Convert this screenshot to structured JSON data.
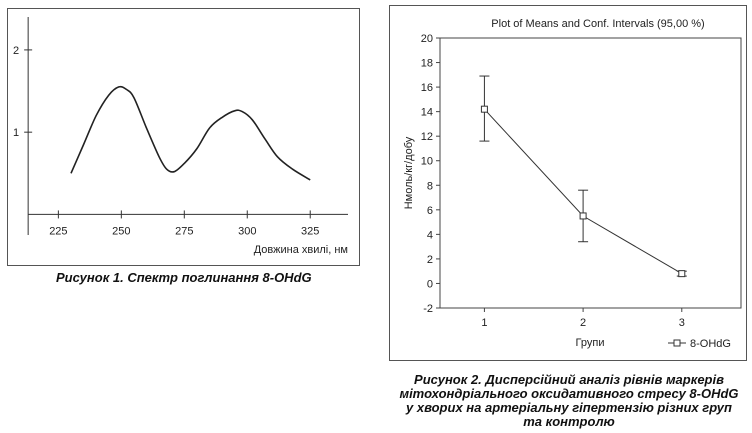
{
  "figure1": {
    "caption": "Рисунок 1. Спектр поглинання 8-OHdG",
    "chart_data": {
      "type": "line",
      "title": "",
      "xlabel": "Довжина хвилі, нм",
      "ylabel": "",
      "x_ticks": [
        225,
        250,
        275,
        300,
        325
      ],
      "y_ticks": [
        1,
        2
      ],
      "xlim": [
        205,
        340
      ],
      "ylim": [
        -0.25,
        2.4
      ],
      "grid": false,
      "series": [
        {
          "x": [
            230,
            235,
            240,
            245,
            249,
            252,
            255,
            260,
            265,
            268,
            271,
            275,
            280,
            285,
            290,
            295,
            298,
            302,
            307,
            312,
            318,
            325
          ],
          "y": [
            0.5,
            0.85,
            1.2,
            1.45,
            1.55,
            1.52,
            1.42,
            1.05,
            0.7,
            0.55,
            0.52,
            0.62,
            0.8,
            1.05,
            1.18,
            1.26,
            1.25,
            1.15,
            0.92,
            0.7,
            0.55,
            0.42
          ]
        }
      ]
    }
  },
  "figure2": {
    "caption_lines": [
      "Рисунок 2. Дисперсійний аналіз рівнів маркерів",
      "мітохондріального оксидативного стресу 8-OHdG",
      "у хворих на артеріальну гіпертензію різних груп",
      "та контролю"
    ],
    "chart_data": {
      "type": "line",
      "title": "Plot of Means and Conf. Intervals (95,00 %)",
      "xlabel": "Групи",
      "ylabel": "Нмоль/кг/добу",
      "x_ticks": [
        1,
        2,
        3
      ],
      "y_ticks": [
        -2,
        0,
        2,
        4,
        6,
        8,
        10,
        12,
        14,
        16,
        18,
        20
      ],
      "xlim": [
        0.55,
        3.6
      ],
      "ylim": [
        -2,
        20
      ],
      "legend_position": "bottom-right",
      "grid": false,
      "series": [
        {
          "name": "8-OHdG",
          "x": [
            1,
            2,
            3
          ],
          "y": [
            14.2,
            5.5,
            0.8
          ],
          "ci_low": [
            11.6,
            3.4,
            0.6
          ],
          "ci_high": [
            16.9,
            7.6,
            1.0
          ]
        }
      ]
    }
  }
}
